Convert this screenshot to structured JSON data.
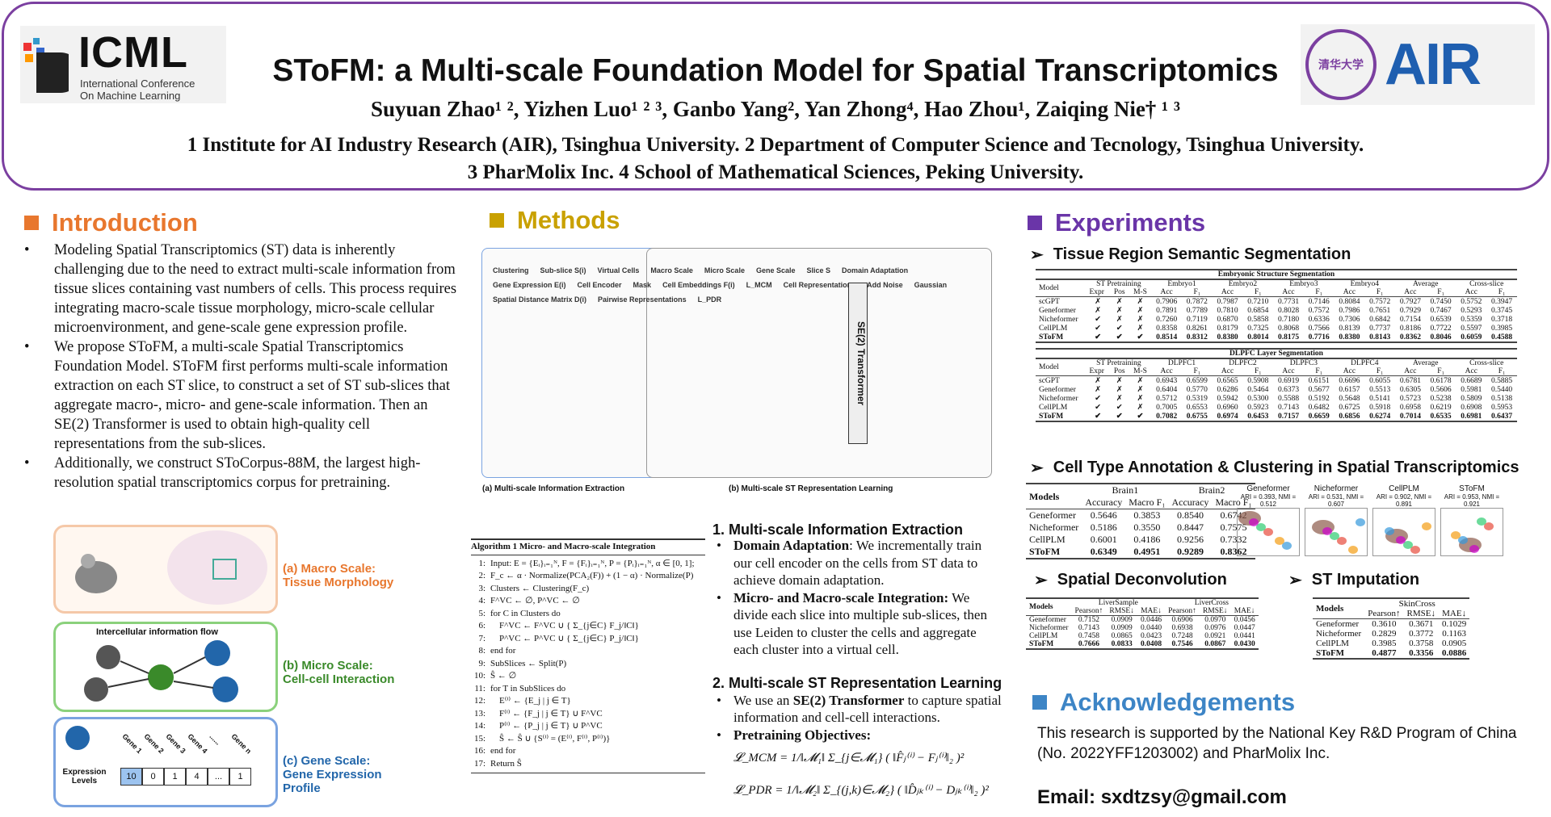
{
  "header": {
    "title": "SToFM: a Multi-scale Foundation Model for Spatial Transcriptomics",
    "authors": "Suyuan Zhao¹ ², Yizhen Luo¹ ² ³, Ganbo Yang², Yan Zhong⁴, Hao Zhou¹, Zaiqing Nie† ¹ ³",
    "affiliation1": "1 Institute for AI Industry Research (AIR), Tsinghua University. 2 Department of Computer Science and Tecnology, Tsinghua University.",
    "affiliation2": "3 PharMolix Inc. 4 School of Mathematical Sciences, Peking University.",
    "icml_logo": {
      "word": "ICML",
      "line1": "International Conference",
      "line2": "On Machine Learning"
    },
    "tsinghua_seal": "清华大学",
    "air_logo": "AIR"
  },
  "colors": {
    "intro": "#e8772e",
    "methods": "#c9a100",
    "experiments": "#6a35a8",
    "ack": "#3d85c6",
    "border": "#7b3fa0"
  },
  "intro": {
    "heading": "Introduction",
    "bullets": [
      "Modeling Spatial Transcriptomics (ST) data is inherently challenging due to the need to extract multi-scale information from tissue slices containing vast numbers of cells. This process requires integrating macro-scale tissue morphology, micro-scale cellular microenvironment, and gene-scale gene expression profile.",
      "We propose SToFM, a multi-scale Spatial Transcriptomics Foundation Model. SToFM first performs multi-scale information extraction on each ST slice, to construct a set of ST sub-slices that aggregate macro-, micro- and gene-scale information. Then an SE(2) Transformer is used to obtain high-quality cell representations from the sub-slices.",
      "Additionally, we construct SToCorpus-88M, the largest high-resolution spatial transcriptomics corpus for pretraining."
    ],
    "scales": [
      {
        "label": "(a) Macro Scale:\nTissue Morphology"
      },
      {
        "label": "(b) Micro Scale:\nCell-cell Interaction",
        "flow": "Intercellular information flow"
      },
      {
        "label": "(c) Gene Scale:\nGene Expression\nProfile",
        "row_label": "Expression Levels",
        "genes": [
          "Gene 1",
          "Gene 2",
          "Gene 3",
          "Gene 4",
          "......",
          "Gene n"
        ],
        "values": [
          "10",
          "0",
          "1",
          "4",
          "...",
          "1"
        ]
      }
    ]
  },
  "methods": {
    "heading": "Methods",
    "figure": {
      "caption_a": "(a) Multi-scale Information Extraction",
      "caption_b": "(b) Multi-scale ST Representation Learning",
      "labels": [
        "Clustering",
        "Sub-slice S(i)",
        "Virtual Cells",
        "Macro Scale",
        "Micro Scale",
        "Gene Scale",
        "Slice S",
        "Domain Adaptation",
        "Gene Expression E(i)",
        "Cell Encoder",
        "Mask",
        "Cell Embeddings F(i)",
        "SE(2) Transformer",
        "L_MCM",
        "Cell Representations",
        "Add Noise",
        "Gaussian",
        "Spatial Distance Matrix D(i)",
        "Pairwise Representations",
        "L_PDR"
      ]
    },
    "algorithm": {
      "title": "Algorithm 1 Micro- and Macro-scale Integration",
      "lines": [
        "Input: E = {Eᵢ}ᵢ₌₁ᴺ, F = {Fᵢ}ᵢ₌₁ᴺ, P = {Pᵢ}ᵢ₌₁ᴺ, α ∈ [0, 1];",
        "F_c ← α · Normalize(PCA₂(F)) + (1 − α) · Normalize(P)",
        "Clusters ← Clustering(F_c)",
        "F^VC ← ∅, P^VC ← ∅",
        "for C in Clusters do",
        "    F^VC ← F^VC ∪ { Σ_{j∈C} F_j/‖C‖}",
        "    P^VC ← P^VC ∪ { Σ_{j∈C} P_j/‖C‖}",
        "end for",
        "SubSlices ← Split(P)",
        "Ŝ ← ∅",
        "for T in SubSlices do",
        "    E⁽ⁱ⁾ ← {E_j | j ∈ T}",
        "    F⁽ⁱ⁾ ← {F_j | j ∈ T} ∪ F^VC",
        "    P⁽ⁱ⁾ ← {P_j | j ∈ T} ∪ P^VC",
        "    Ŝ ← Ŝ ∪ {S⁽ⁱ⁾ = (E⁽ⁱ⁾, F⁽ⁱ⁾, P⁽ⁱ⁾)}",
        "end for",
        "Return Ŝ"
      ]
    },
    "s1": {
      "title": "1. Multi-scale Information Extraction",
      "bullets": [
        {
          "b": "Domain Adaptation",
          "t": ": We incrementally train our cell encoder on the cells from ST data to achieve domain adaptation."
        },
        {
          "b": "Micro- and Macro-scale Integration:",
          "t": " We divide each slice into multiple sub-slices, then use Leiden to cluster the cells and aggregate each cluster into a virtual cell."
        }
      ]
    },
    "s2": {
      "title": "2. Multi-scale ST Representation Learning",
      "bullets": [
        {
          "t": "We use an ",
          "b": "SE(2) Transformer",
          "t2": " to capture spatial information and cell-cell interactions."
        },
        {
          "b": "Pretraining Objectives:"
        }
      ],
      "eq1": "𝓛_MCM = 1/‖𝓜₁‖ Σ_{j∈𝓜₁} ( ‖F̂ⱼ⁽ⁱ⁾ − Fⱼ⁽ⁱ⁾‖₂ )²",
      "eq2": "𝓛_PDR = 1/‖𝓜₂‖ Σ_{(j,k)∈𝓜₂} ( ‖D̂ⱼₖ⁽ⁱ⁾ − Dⱼₖ⁽ⁱ⁾‖₂ )²"
    }
  },
  "experiments": {
    "heading": "Experiments",
    "seg": {
      "title": "Tissue Region Semantic Segmentation",
      "tables": [
        {
          "caption": "Embryonic Structure Segmentation",
          "groups": [
            "Embryo1",
            "Embryo2",
            "Embryo3",
            "Embryo4",
            "Average",
            "Cross-slice"
          ],
          "rows": [
            [
              "scGPT",
              "✗",
              "✗",
              "✗",
              "0.7906",
              "0.7872",
              "0.7987",
              "0.7210",
              "0.7731",
              "0.7146",
              "0.8084",
              "0.7572",
              "0.7927",
              "0.7450",
              "0.5752",
              "0.3947"
            ],
            [
              "Geneformer",
              "✗",
              "✗",
              "✗",
              "0.7891",
              "0.7789",
              "0.7810",
              "0.6854",
              "0.8028",
              "0.7572",
              "0.7986",
              "0.7651",
              "0.7929",
              "0.7467",
              "0.5293",
              "0.3745"
            ],
            [
              "Nicheformer",
              "✔",
              "✗",
              "✗",
              "0.7260",
              "0.7119",
              "0.6870",
              "0.5858",
              "0.7180",
              "0.6336",
              "0.7306",
              "0.6842",
              "0.7154",
              "0.6539",
              "0.5359",
              "0.3718"
            ],
            [
              "CellPLM",
              "✔",
              "✔",
              "✗",
              "0.8358",
              "0.8261",
              "0.8179",
              "0.7325",
              "0.8068",
              "0.7566",
              "0.8139",
              "0.7737",
              "0.8186",
              "0.7722",
              "0.5597",
              "0.3985"
            ],
            [
              "SToFM",
              "✔",
              "✔",
              "✔",
              "0.8514",
              "0.8312",
              "0.8380",
              "0.8014",
              "0.8175",
              "0.7716",
              "0.8380",
              "0.8143",
              "0.8362",
              "0.8046",
              "0.6059",
              "0.4588"
            ]
          ]
        },
        {
          "caption": "DLPFC Layer Segmentation",
          "groups": [
            "DLPFC1",
            "DLPFC2",
            "DLPFC3",
            "DLPFC4",
            "Average",
            "Cross-slice"
          ],
          "rows": [
            [
              "scGPT",
              "✗",
              "✗",
              "✗",
              "0.6943",
              "0.6599",
              "0.6565",
              "0.5908",
              "0.6919",
              "0.6151",
              "0.6696",
              "0.6055",
              "0.6781",
              "0.6178",
              "0.6689",
              "0.5885"
            ],
            [
              "Geneformer",
              "✗",
              "✗",
              "✗",
              "0.6404",
              "0.5770",
              "0.6286",
              "0.5464",
              "0.6373",
              "0.5677",
              "0.6157",
              "0.5513",
              "0.6305",
              "0.5606",
              "0.5981",
              "0.5440"
            ],
            [
              "Nicheformer",
              "✔",
              "✗",
              "✗",
              "0.5712",
              "0.5319",
              "0.5942",
              "0.5300",
              "0.5588",
              "0.5192",
              "0.5648",
              "0.5141",
              "0.5723",
              "0.5238",
              "0.5809",
              "0.5138"
            ],
            [
              "CellPLM",
              "✔",
              "✔",
              "✗",
              "0.7005",
              "0.6553",
              "0.6960",
              "0.5923",
              "0.7143",
              "0.6482",
              "0.6725",
              "0.5918",
              "0.6958",
              "0.6219",
              "0.6908",
              "0.5953"
            ],
            [
              "SToFM",
              "✔",
              "✔",
              "✔",
              "0.7082",
              "0.6755",
              "0.6974",
              "0.6453",
              "0.7157",
              "0.6659",
              "0.6856",
              "0.6274",
              "0.7014",
              "0.6535",
              "0.6981",
              "0.6437"
            ]
          ]
        }
      ],
      "header": {
        "model": "Model",
        "pre": "ST Pretraining",
        "sub": [
          "Expr",
          "Pos",
          "M-S"
        ],
        "acc": "Acc",
        "f1": "F₁"
      }
    },
    "cta": {
      "title": "Cell Type Annotation & Clustering in Spatial Transcriptomics",
      "header": {
        "models": "Models",
        "groups": [
          "Brain1",
          "Brain2"
        ],
        "cols": [
          "Accuracy",
          "Macro F₁",
          "Accuracy",
          "Macro F₁"
        ]
      },
      "rows": [
        [
          "Geneformer",
          "0.5646",
          "0.3853",
          "0.8540",
          "0.6742"
        ],
        [
          "Nicheformer",
          "0.5186",
          "0.3550",
          "0.8447",
          "0.7575"
        ],
        [
          "CellPLM",
          "0.6001",
          "0.4186",
          "0.9256",
          "0.7332"
        ],
        [
          "SToFM",
          "0.6349",
          "0.4951",
          "0.9289",
          "0.8362"
        ]
      ],
      "umaps": [
        {
          "name": "Geneformer",
          "metric": "ARI = 0.393, NMI = 0.512"
        },
        {
          "name": "Nicheformer",
          "metric": "ARI = 0.531, NMI = 0.607"
        },
        {
          "name": "CellPLM",
          "metric": "ARI = 0.902, NMI = 0.891"
        },
        {
          "name": "SToFM",
          "metric": "ARI = 0.953, NMI = 0.921"
        }
      ]
    },
    "deconv": {
      "title": "Spatial Deconvolution",
      "header": {
        "models": "Models",
        "groups": [
          "LiverSample",
          "LiverCross"
        ],
        "cols": [
          "Pearson↑",
          "RMSE↓",
          "MAE↓",
          "Pearson↑",
          "RMSE↓",
          "MAE↓"
        ]
      },
      "rows": [
        [
          "Geneformer",
          "0.7152",
          "0.0909",
          "0.0446",
          "0.6906",
          "0.0970",
          "0.0456"
        ],
        [
          "Nicheformer",
          "0.7143",
          "0.0909",
          "0.0440",
          "0.6938",
          "0.0976",
          "0.0447"
        ],
        [
          "CellPLM",
          "0.7458",
          "0.0865",
          "0.0423",
          "0.7248",
          "0.0921",
          "0.0441"
        ],
        [
          "SToFM",
          "0.7666",
          "0.0833",
          "0.0408",
          "0.7546",
          "0.0867",
          "0.0430"
        ]
      ]
    },
    "impute": {
      "title": "ST Imputation",
      "header": {
        "models": "Models",
        "groups": [
          "SkinCross"
        ],
        "cols": [
          "Pearson↑",
          "RMSE↓",
          "MAE↓"
        ]
      },
      "rows": [
        [
          "Geneformer",
          "0.3610",
          "0.3671",
          "0.1029"
        ],
        [
          "Nicheformer",
          "0.2829",
          "0.3772",
          "0.1163"
        ],
        [
          "CellPLM",
          "0.3985",
          "0.3758",
          "0.0905"
        ],
        [
          "SToFM",
          "0.4877",
          "0.3356",
          "0.0886"
        ]
      ]
    }
  },
  "ack": {
    "heading": "Acknowledgements",
    "text": "This research is supported by the National Key R&D Program of China (No. 2022YFF1203002) and PharMolix Inc.",
    "email": "Email: sxdtzsy@gmail.com"
  }
}
